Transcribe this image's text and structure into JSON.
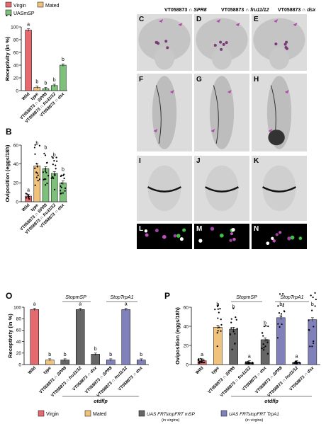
{
  "panel_letters": {
    "A": "A",
    "B": "B",
    "O": "O",
    "P": "P",
    "C": "C",
    "D": "D",
    "E": "E",
    "F": "F",
    "G": "G",
    "H": "H",
    "I": "I",
    "J": "J",
    "K": "K",
    "L": "L",
    "M": "M",
    "N": "N"
  },
  "legend_top": [
    {
      "label": "Virgin",
      "color": "#e46a6f"
    },
    {
      "label": "Mated",
      "color": "#f0c27b"
    },
    {
      "label": "UASmSP",
      "color": "#7cc07a"
    }
  ],
  "image_columns": [
    {
      "prefix": "VT058873 ∩ ",
      "gene": "SPR8"
    },
    {
      "prefix": "VT058873 ∩ ",
      "gene": "fru11/12"
    },
    {
      "prefix": "VT058873 ∩ ",
      "gene": "dsx"
    }
  ],
  "colors": {
    "virgin": "#e46a6f",
    "mated": "#f0c27b",
    "uasmsp": "#7cc07a",
    "gray": "#666666",
    "purple": "#8080bb",
    "arrow": "#b04aa8"
  },
  "stop_labels": {
    "msp": "StopmSP",
    "trpa1": "StopTrpA1"
  },
  "otdflp": "otdflp",
  "legend_bottom": [
    {
      "label": "Virgin",
      "color": "#e46a6f"
    },
    {
      "label": "Mated",
      "color": "#f0c27b"
    },
    {
      "label": "UAS FRTstopFRT mSP",
      "sub": "(in virgins)",
      "color": "#666666"
    },
    {
      "label": "UAS FRTstopFRT TrpA1",
      "sub": "(in virgins)",
      "color": "#8080bb"
    }
  ],
  "chart_data": [
    {
      "id": "A",
      "type": "bar",
      "ylabel": "Receptivity (in %)",
      "ylim": [
        0,
        100
      ],
      "yticks": [
        0,
        20,
        40,
        60,
        80,
        100
      ],
      "categories": [
        "Wild",
        "type",
        "VT058873 ∩ SPR8",
        "VT058873 ∩ fru11/12",
        "VT058873 ∩ dsx"
      ],
      "values": [
        95,
        5,
        3,
        8,
        40
      ],
      "colors": [
        "#e46a6f",
        "#f0c27b",
        "#7cc07a",
        "#7cc07a",
        "#7cc07a"
      ],
      "letters": [
        "a",
        "b",
        "b",
        "b",
        "b"
      ]
    },
    {
      "id": "B",
      "type": "bar",
      "ylabel": "Oviposition (eggs/18h)",
      "ylim": [
        0,
        60
      ],
      "yticks": [
        0,
        20,
        40,
        60
      ],
      "categories": [
        "Wild",
        "type",
        "VT058873 ∩ SPR8",
        "VT058873 ∩ fru11/12",
        "VT058873 ∩ dsx"
      ],
      "values": [
        6,
        38,
        35,
        30,
        20
      ],
      "colors": [
        "#e46a6f",
        "#f0c27b",
        "#7cc07a",
        "#7cc07a",
        "#7cc07a"
      ],
      "letters": [
        "a",
        "b",
        "b",
        "b",
        "b"
      ]
    },
    {
      "id": "O",
      "type": "bar",
      "ylabel": "Receptivity (in %)",
      "ylim": [
        0,
        100
      ],
      "yticks": [
        0,
        20,
        40,
        60,
        80,
        100
      ],
      "categories": [
        "Wild",
        "type",
        "VT058873 ∩ SPR8",
        "VT058873 ∩ fru11/12",
        "VT058873 ∩ dsx",
        "VT058873 ∩ SPR8",
        "VT058873 ∩ fru11/12",
        "VT058873 ∩ dsx"
      ],
      "values": [
        96,
        8,
        8,
        96,
        18,
        8,
        96,
        8
      ],
      "colors": [
        "#e46a6f",
        "#f0c27b",
        "#666666",
        "#666666",
        "#666666",
        "#8080bb",
        "#8080bb",
        "#8080bb"
      ],
      "letters": [
        "a",
        "b",
        "b",
        "a",
        "b",
        "b",
        "a",
        "b"
      ]
    },
    {
      "id": "P",
      "type": "bar",
      "ylabel": "Oviposition (eggs/18h)",
      "ylim": [
        0,
        60
      ],
      "yticks": [
        0,
        20,
        40,
        60
      ],
      "categories": [
        "Wild",
        "type",
        "VT058873 ∩ SPR8",
        "VT058873 ∩ fru11/12",
        "VT058873 ∩ dsx",
        "VT058873 ∩ SPR8",
        "VT058873 ∩ fru11/12",
        "VT058873 ∩ dsx"
      ],
      "values": [
        4,
        39,
        37,
        2,
        26,
        49,
        2,
        47
      ],
      "colors": [
        "#e46a6f",
        "#f0c27b",
        "#666666",
        "#666666",
        "#666666",
        "#8080bb",
        "#8080bb",
        "#8080bb"
      ],
      "letters": [
        "a",
        "b",
        "b",
        "a",
        "b",
        "b",
        "a",
        "b"
      ]
    }
  ]
}
